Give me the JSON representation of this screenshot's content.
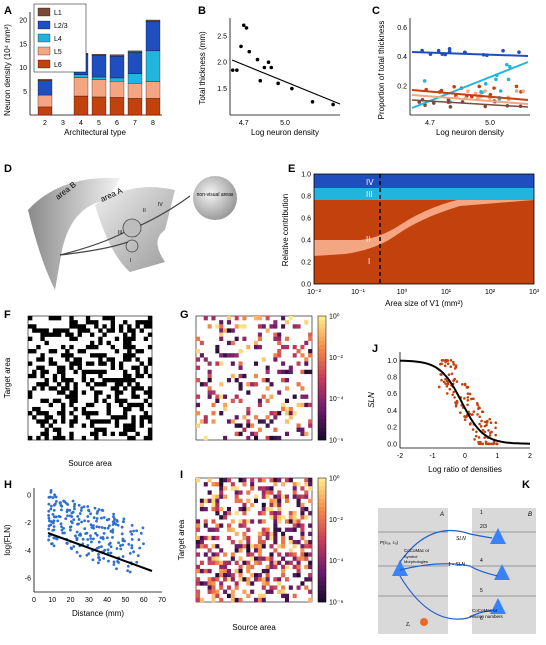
{
  "panels": {
    "A": {
      "label": "A",
      "xlabel": "Architectural type",
      "ylabel": "Neuron density (10⁴ mm²)",
      "legend": [
        "L1",
        "L2/3",
        "L4",
        "L5",
        "L6"
      ]
    },
    "B": {
      "label": "B",
      "xlabel": "Log neuron density",
      "ylabel": "Total thickness (mm)"
    },
    "C": {
      "label": "C",
      "xlabel": "Log neuron density",
      "ylabel": "Proportion of total thickness"
    },
    "D": {
      "label": "D",
      "area_b": "area B",
      "area_a": "area A",
      "nonvisual": "non-visual areas",
      "layers": [
        "II",
        "III",
        "IV",
        "I"
      ]
    },
    "E": {
      "label": "E",
      "xlabel": "Area size of V1 (mm²)",
      "ylabel": "Relative contribution",
      "layers": [
        "IV",
        "III",
        "II",
        "I"
      ]
    },
    "F": {
      "label": "F",
      "xlabel": "Source area",
      "ylabel": "Target area"
    },
    "G": {
      "label": "G"
    },
    "H": {
      "label": "H",
      "xlabel": "Distance (mm)",
      "ylabel": "log(FLN)"
    },
    "I": {
      "label": "I",
      "xlabel": "Source area",
      "ylabel": "Target area"
    },
    "J": {
      "label": "J",
      "xlabel": "Log ratio of densities",
      "ylabel": "SLN"
    },
    "K": {
      "label": "K",
      "area_a": "A",
      "area_b": "B",
      "text_p": "P(s₀ₓ, cₒ)",
      "text_cocomac": "CoCoMac or",
      "text_symbol": "Symbol",
      "text_morph": "Morphologies",
      "text_sln": "SLN",
      "text_1sln": "1 - SLN",
      "text_cocomac2": "CoCoMac or",
      "text_neuron": "neuron numbers",
      "text_z": "Zᵢ",
      "layers": [
        "1",
        "2/3",
        "4",
        "5",
        "6"
      ]
    }
  },
  "colors": {
    "L1": "#7a4a3a",
    "L23": "#1f4fbf",
    "L4": "#21b5de",
    "L5": "#f4a582",
    "L6": "#c2410c",
    "cmap_dark": "#1a0c2e",
    "cmap_mid": "#b13a6b",
    "cmap_light": "#fde98a"
  },
  "chart_data": [
    {
      "type": "bar",
      "panel": "A",
      "categories": [
        "2",
        "3",
        "4",
        "5",
        "6",
        "7",
        "8"
      ],
      "series": [
        {
          "name": "L1",
          "values": [
            0.3,
            0,
            0.3,
            0.3,
            0.3,
            0.3,
            0.3
          ]
        },
        {
          "name": "L2/3",
          "values": [
            3,
            0,
            4.2,
            4.5,
            4.6,
            4.5,
            6.2
          ]
        },
        {
          "name": "L4",
          "values": [
            0,
            0,
            0.6,
            0.6,
            0.7,
            2,
            6.5
          ]
        },
        {
          "name": "L5",
          "values": [
            2.5,
            0,
            3.9,
            3.6,
            3.4,
            3.2,
            3.5
          ]
        },
        {
          "name": "L6",
          "values": [
            1.7,
            0,
            4.0,
            3.8,
            3.7,
            3.5,
            3.5
          ]
        }
      ],
      "yticks": [
        "5",
        "10",
        "15",
        "20"
      ],
      "ylim": [
        0,
        20
      ]
    },
    {
      "type": "scatter",
      "panel": "B",
      "x": [
        4.62,
        4.65,
        4.68,
        4.7,
        4.72,
        4.74,
        4.8,
        4.82,
        4.85,
        4.88,
        4.9,
        4.95,
        5.05,
        5.2,
        5.35
      ],
      "y": [
        1.85,
        1.85,
        2.3,
        2.7,
        2.65,
        2.2,
        2.05,
        1.65,
        1.9,
        2.0,
        1.9,
        1.6,
        1.5,
        1.25,
        1.2
      ],
      "ylim": [
        1.0,
        2.8
      ],
      "xlim": [
        4.6,
        5.4
      ],
      "xticks": [
        "4.7",
        "5.0"
      ],
      "yticks": [
        "1.5",
        "2.0",
        "2.5"
      ]
    },
    {
      "type": "scatter",
      "panel": "C",
      "xticks": [
        "4.7",
        "5.0"
      ],
      "yticks": [
        "0.2",
        "0.4",
        "0.6"
      ],
      "ylim": [
        0,
        0.65
      ]
    },
    {
      "type": "area",
      "panel": "E",
      "xticks": [
        "10⁻²",
        "10⁻¹",
        "10⁰",
        "10¹",
        "10²",
        "10³"
      ],
      "yticks": [
        "0.0",
        "0.2",
        "0.4",
        "0.6",
        "0.8",
        "1.0"
      ]
    },
    {
      "type": "heatmap",
      "panel": "G",
      "colorbar_ticks": [
        "10⁰",
        "10⁻²",
        "10⁻⁴",
        "10⁻⁶"
      ]
    },
    {
      "type": "scatter",
      "panel": "H",
      "xticks": [
        "0",
        "10",
        "20",
        "30",
        "40",
        "50",
        "60",
        "70"
      ],
      "yticks": [
        "0",
        "-2",
        "-4",
        "-6"
      ],
      "xlim": [
        0,
        70
      ],
      "ylim": [
        -7,
        0.5
      ]
    },
    {
      "type": "heatmap",
      "panel": "I",
      "colorbar_ticks": [
        "10⁰",
        "10⁻²",
        "10⁻⁴",
        "10⁻⁶"
      ]
    },
    {
      "type": "scatter",
      "panel": "J",
      "xticks": [
        "-2",
        "-1",
        "0",
        "1",
        "2"
      ],
      "yticks": [
        "0.0",
        "0.2",
        "0.4",
        "0.6",
        "0.8",
        "1.0"
      ],
      "xlim": [
        -2,
        2
      ],
      "ylim": [
        -0.05,
        1.1
      ]
    }
  ]
}
